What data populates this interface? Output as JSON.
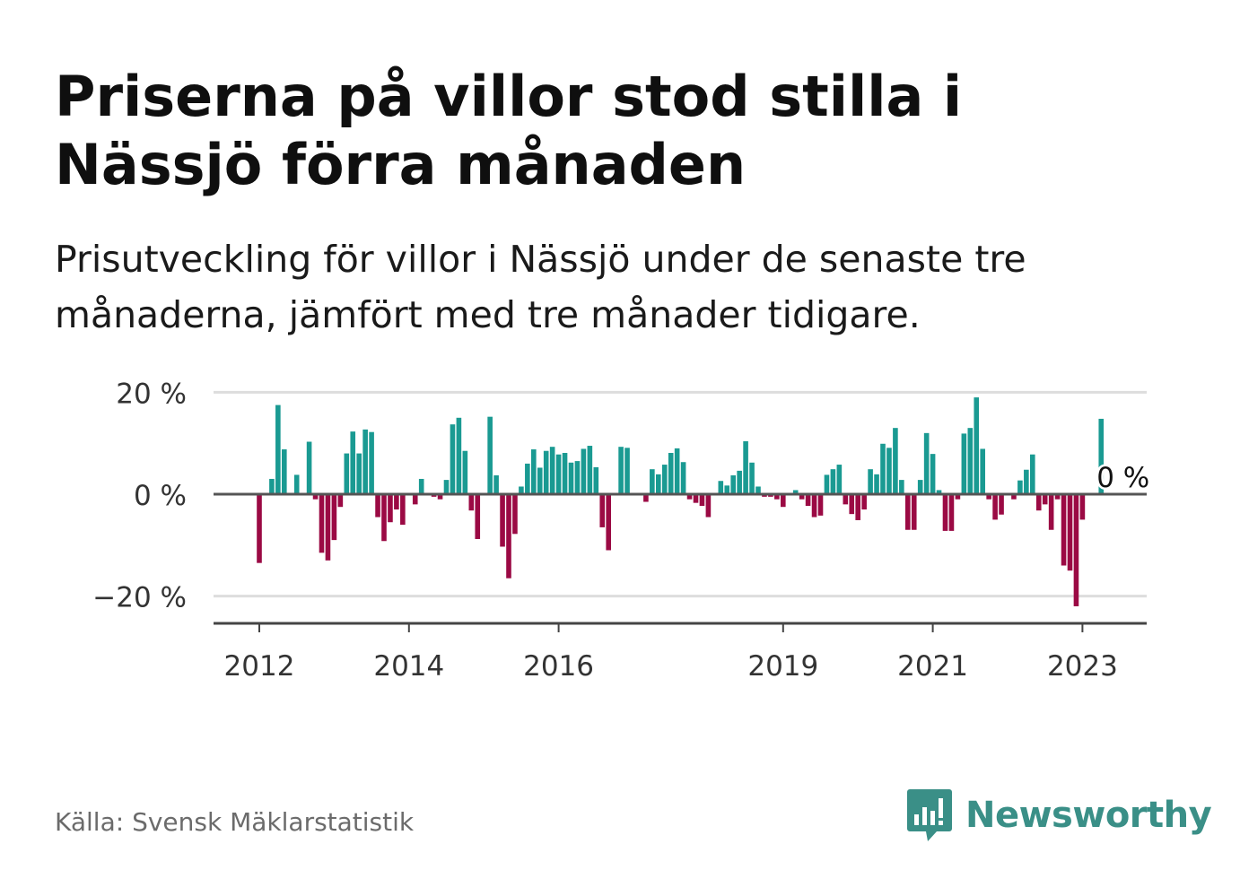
{
  "title": "Priserna på villor stod stilla i Nässjö förra månaden",
  "subtitle": "Prisutveckling för villor i Nässjö under de senaste tre månaderna, jämfört med tre månader tidigare.",
  "source": "Källa: Svensk Mäklarstatistik",
  "brand": "Newsworthy",
  "colors": {
    "positive": "#1a9a92",
    "negative": "#9b0a44",
    "grid": "#dddddd",
    "axis": "#444444",
    "brand": "#3a8f87"
  },
  "chart_data": {
    "type": "bar",
    "ylim": [
      -26,
      20
    ],
    "yticks": [
      {
        "value": 20,
        "label": "20 %"
      },
      {
        "value": 0,
        "label": "0 %"
      },
      {
        "value": -20,
        "label": "−20 %"
      }
    ],
    "xticks": [
      "2012",
      "2014",
      "2016",
      "2019",
      "2021",
      "2023"
    ],
    "xtick_index": [
      0,
      24,
      48,
      84,
      108,
      132
    ],
    "annotation": "0 %",
    "start_month": "2012-01",
    "values": [
      -13.5,
      0,
      3,
      17.5,
      8.8,
      0,
      3.8,
      0,
      10.3,
      -1,
      -11.5,
      -13,
      -9,
      -2.5,
      8,
      12.3,
      8,
      12.7,
      12.2,
      -4.5,
      -9.2,
      -5.5,
      -3,
      -6,
      0,
      -2,
      3,
      0,
      -0.5,
      -1,
      2.8,
      13.7,
      15,
      8.5,
      -3.2,
      -8.8,
      0,
      15.2,
      3.7,
      -10.3,
      -16.5,
      -7.8,
      1.5,
      6,
      8.8,
      5.2,
      8.5,
      9.3,
      7.8,
      8.1,
      6.2,
      6.5,
      8.9,
      9.5,
      5.3,
      -6.5,
      -11,
      0,
      9.3,
      9.1,
      0,
      0,
      -1.5,
      4.9,
      3.9,
      5.8,
      8.1,
      9,
      6.3,
      -1,
      -1.7,
      -2.3,
      -4.5,
      0,
      2.6,
      1.7,
      3.7,
      4.6,
      10.4,
      6.2,
      1.5,
      -0.5,
      -0.5,
      -1,
      -2.5,
      0,
      0.8,
      -1,
      -2.3,
      -4.5,
      -4.2,
      3.8,
      4.9,
      5.8,
      -2,
      -3.9,
      -5.1,
      -3,
      4.9,
      3.9,
      9.9,
      9.1,
      13,
      2.8,
      -7,
      -7,
      2.8,
      12,
      7.9,
      0.8,
      -7.2,
      -7.2,
      -1,
      11.9,
      13,
      19,
      8.9,
      -1,
      -5,
      -4,
      0,
      -1,
      2.7,
      4.8,
      7.8,
      -3.2,
      -2,
      -7,
      -1,
      -14,
      -15,
      -22,
      -5,
      0,
      0,
      14.8,
      0
    ]
  }
}
